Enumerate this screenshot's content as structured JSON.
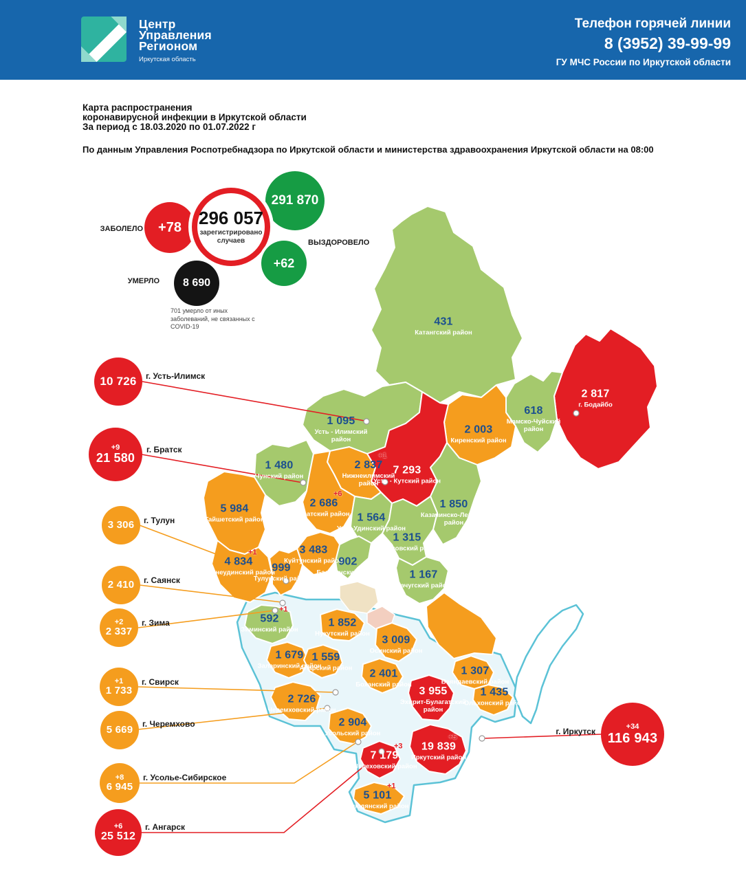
{
  "header": {
    "logo_line1": "Центр",
    "logo_line2": "Управления",
    "logo_line3": "Регионом",
    "logo_subtitle": "Иркутская область",
    "hotline_title": "Телефон горячей линии",
    "hotline_phone": "8 (3952) 39-99-99",
    "hotline_org": "ГУ МЧС России по Иркутской области"
  },
  "title_block": {
    "line1": "Карта распространения",
    "line2": "коронавирусной инфекции в Иркутской области",
    "line3": "За период с 18.03.2020 по 01.07.2022 г",
    "source": "По данным Управления Роспотребнадзора по Иркутской области и министерства здравоохранения Иркутской области на 08:00"
  },
  "summary": {
    "sick_label": "ЗАБОЛЕЛО",
    "sick_delta": "+78",
    "registered_value": "296 057",
    "registered_caption_line1": "зарегистрировано",
    "registered_caption_line2": "случаев",
    "recovered_value": "291 870",
    "recovered_label": "ВЫЗДОРОВЕЛО",
    "recovered_delta": "+62",
    "died_value": "8 690",
    "died_label": "УМЕРЛО",
    "died_note": "701 умерло от иных заболеваний, не связанных с COVID-19"
  },
  "colors": {
    "header_blue": "#1766ac",
    "red": "#e31e24",
    "orange": "#f59d1e",
    "map_green": "#a5c96d",
    "green_circle": "#169c44",
    "black_circle": "#141414",
    "value_blue": "#1b4f8f",
    "water_teal": "#5bc2d6"
  },
  "cities": [
    {
      "id": "ust_ilimsk",
      "label": "г. Усть-Илимск",
      "value": "10 726",
      "delta": "",
      "severity": "red"
    },
    {
      "id": "bratsk",
      "label": "г. Братск",
      "value": "21 580",
      "delta": "+9",
      "severity": "red"
    },
    {
      "id": "tulun",
      "label": "г. Тулун",
      "value": "3 306",
      "delta": "",
      "severity": "orange"
    },
    {
      "id": "sayansk",
      "label": "г. Саянск",
      "value": "2 410",
      "delta": "",
      "severity": "orange"
    },
    {
      "id": "zima",
      "label": "г. Зима",
      "value": "2 337",
      "delta": "+2",
      "severity": "orange"
    },
    {
      "id": "svirsk",
      "label": "г. Свирск",
      "value": "1 733",
      "delta": "+1",
      "severity": "orange"
    },
    {
      "id": "cheremkhovo",
      "label": "г. Черемхово",
      "value": "5 669",
      "delta": "",
      "severity": "orange"
    },
    {
      "id": "usolye",
      "label": "г. Усолье-Сибирское",
      "value": "6 945",
      "delta": "+8",
      "severity": "orange"
    },
    {
      "id": "angarsk",
      "label": "г. Ангарск",
      "value": "25 512",
      "delta": "+6",
      "severity": "red"
    },
    {
      "id": "irkutsk",
      "label": "г. Иркутск",
      "value": "116 943",
      "delta": "+34",
      "severity": "red"
    }
  ],
  "map": {
    "districts": [
      {
        "id": "katangsky",
        "name": "Катангский район",
        "value": "431",
        "delta": "",
        "severity": "green"
      },
      {
        "id": "bodaibo",
        "name": "г. Бодайбо",
        "value": "2 817",
        "delta": "",
        "severity": "red"
      },
      {
        "id": "mamsko_chuysky",
        "name": "Мамско-Чуйский район",
        "value": "618",
        "delta": "",
        "severity": "green"
      },
      {
        "id": "kirensky",
        "name": "Киренский район",
        "value": "2 003",
        "delta": "",
        "severity": "orange"
      },
      {
        "id": "ust_ilimsky",
        "name": "Усть - Илимский район",
        "value": "1 095",
        "delta": "",
        "severity": "green"
      },
      {
        "id": "chunsky",
        "name": "Чунский район",
        "value": "1 480",
        "delta": "",
        "severity": "green"
      },
      {
        "id": "nizhneilimsky",
        "name": "Нижнеилимский район",
        "value": "2 837",
        "delta": "+1",
        "severity": "orange"
      },
      {
        "id": "ust_kutsky",
        "name": "Усть - Кутский район",
        "value": "7 293",
        "delta": "",
        "severity": "red"
      },
      {
        "id": "bratsky",
        "name": "Братский район",
        "value": "2 686",
        "delta": "+6",
        "severity": "orange"
      },
      {
        "id": "kazachinsko_lensky",
        "name": "Казачинско-Ленский район",
        "value": "1 850",
        "delta": "",
        "severity": "green"
      },
      {
        "id": "taishetsky",
        "name": "Тайшетский район",
        "value": "5 984",
        "delta": "",
        "severity": "orange"
      },
      {
        "id": "ust_udinsky",
        "name": "Усть-Удинский район",
        "value": "1 564",
        "delta": "",
        "severity": "green"
      },
      {
        "id": "zhigalovsky",
        "name": "Жигаловский район",
        "value": "1 315",
        "delta": "",
        "severity": "green"
      },
      {
        "id": "kuytunsky",
        "name": "Куйтунский район",
        "value": "3 483",
        "delta": "",
        "severity": "orange"
      },
      {
        "id": "nizhneudinsky",
        "name": "Нижнеудинский район",
        "value": "4 834",
        "delta": "+1",
        "severity": "orange"
      },
      {
        "id": "tulunsky",
        "name": "Тулунский район",
        "value": "999",
        "delta": "",
        "severity": "orange"
      },
      {
        "id": "balagansky",
        "name": "Балаганский район",
        "value": "902",
        "delta": "",
        "severity": "green"
      },
      {
        "id": "kachugsky",
        "name": "Качугский район",
        "value": "1 167",
        "delta": "",
        "severity": "green"
      },
      {
        "id": "ziminsky",
        "name": "Зиминский район",
        "value": "592",
        "delta": "+1",
        "severity": "green"
      },
      {
        "id": "nukutsky",
        "name": "Нукутский район",
        "value": "1 852",
        "delta": "",
        "severity": "orange"
      },
      {
        "id": "osinsky",
        "name": "Осинский район",
        "value": "3 009",
        "delta": "",
        "severity": "orange"
      },
      {
        "id": "zalarinsky",
        "name": "Заларинский район",
        "value": "1 679",
        "delta": "",
        "severity": "orange"
      },
      {
        "id": "alarsky",
        "name": "Аларский район",
        "value": "1 559",
        "delta": "",
        "severity": "orange"
      },
      {
        "id": "bokhansky",
        "name": "Боханский район",
        "value": "2 401",
        "delta": "",
        "severity": "orange"
      },
      {
        "id": "bayandaevsky",
        "name": "Баяндаевский район",
        "value": "1 307",
        "delta": "",
        "severity": "orange"
      },
      {
        "id": "olkhonsky",
        "name": "Ольхонский район",
        "value": "1 435",
        "delta": "",
        "severity": "orange"
      },
      {
        "id": "ekhirit_bulagatsky",
        "name": "Эхирит-Булагатский район",
        "value": "3 955",
        "delta": "",
        "severity": "red"
      },
      {
        "id": "cheremkhovsky",
        "name": "Черемховский район",
        "value": "2 726",
        "delta": "",
        "severity": "orange"
      },
      {
        "id": "usolsky",
        "name": "Усольский район",
        "value": "2 904",
        "delta": "",
        "severity": "orange"
      },
      {
        "id": "irkutsky",
        "name": "Иркутский район",
        "value": "19 839",
        "delta": "+5",
        "severity": "red"
      },
      {
        "id": "shelekhovsky",
        "name": "Шелеховский район",
        "value": "7 179",
        "delta": "+3",
        "severity": "red"
      },
      {
        "id": "slyudyansky",
        "name": "Слюдянский район",
        "value": "5 101",
        "delta": "+1",
        "severity": "orange"
      }
    ]
  }
}
